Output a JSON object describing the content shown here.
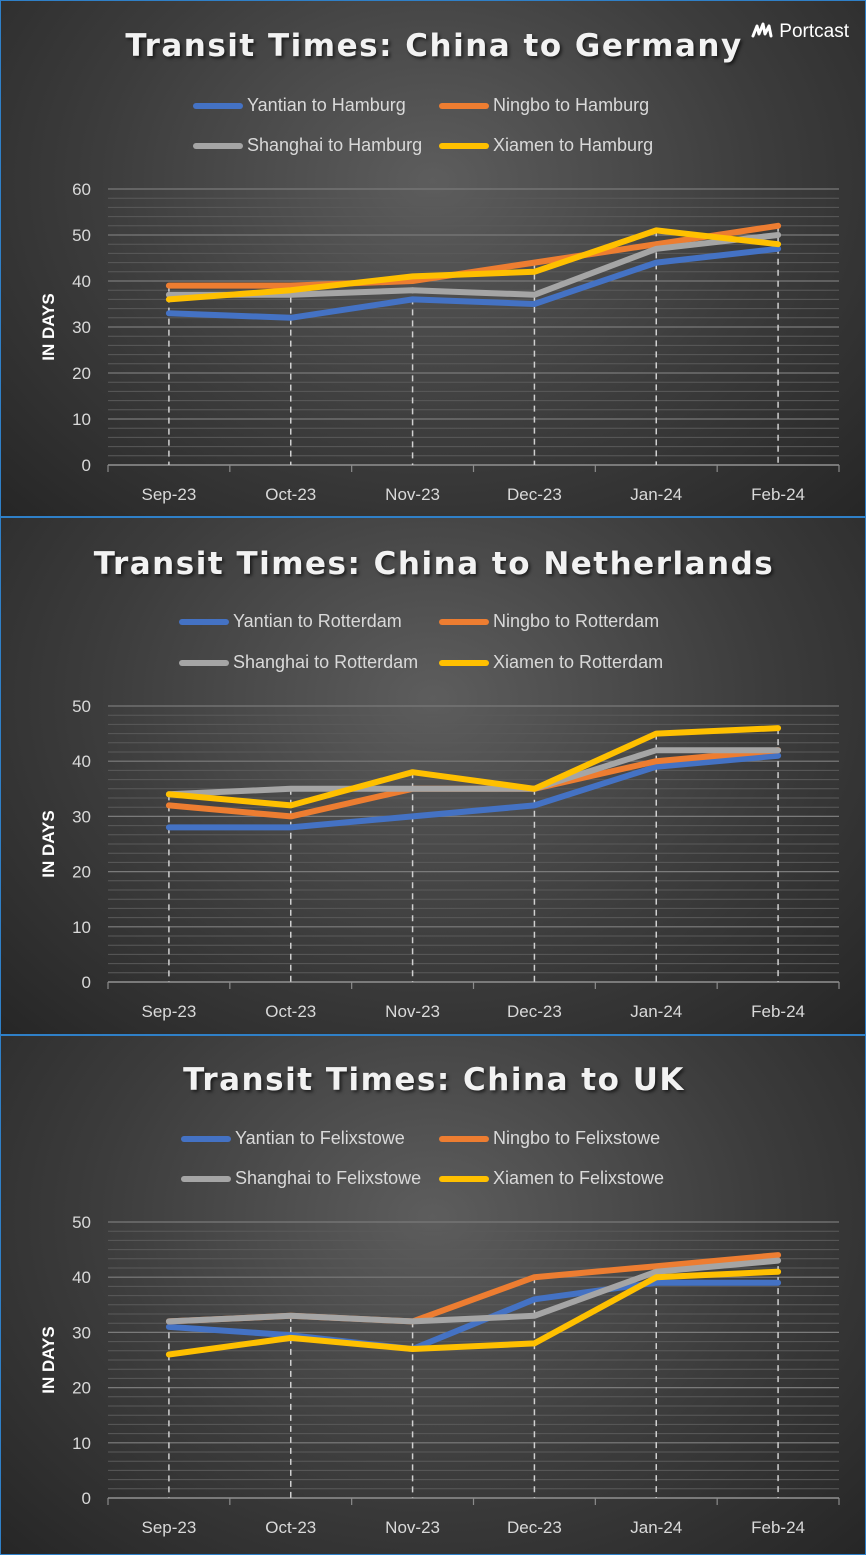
{
  "brand": {
    "name": "Portcast"
  },
  "colors": {
    "Yantian": "#4472c4",
    "Ningbo": "#ed7d31",
    "Shanghai": "#a5a5a5",
    "Xiamen": "#ffc000"
  },
  "chart_data": [
    {
      "type": "line",
      "title": "Transit Times: China to Germany",
      "ylabel": "IN DAYS",
      "xlabel": "",
      "categories": [
        "Sep-23",
        "Oct-23",
        "Nov-23",
        "Dec-23",
        "Jan-24",
        "Feb-24"
      ],
      "ylim": [
        0,
        60
      ],
      "yticks": [
        0,
        10,
        20,
        30,
        40,
        50,
        60
      ],
      "grid": true,
      "legend_position": "top",
      "series": [
        {
          "name": "Yantian to Hamburg",
          "values": [
            33,
            32,
            36,
            35,
            44,
            47
          ]
        },
        {
          "name": "Ningbo to Hamburg",
          "values": [
            39,
            39,
            40,
            44,
            48,
            52
          ]
        },
        {
          "name": "Shanghai to Hamburg",
          "values": [
            37,
            37,
            38,
            37,
            47,
            50
          ]
        },
        {
          "name": "Xiamen to Hamburg",
          "values": [
            36,
            38,
            41,
            42,
            51,
            48
          ]
        }
      ]
    },
    {
      "type": "line",
      "title": "Transit Times: China to Netherlands",
      "ylabel": "IN DAYS",
      "xlabel": "",
      "categories": [
        "Sep-23",
        "Oct-23",
        "Nov-23",
        "Dec-23",
        "Jan-24",
        "Feb-24"
      ],
      "ylim": [
        0,
        50
      ],
      "yticks": [
        0,
        10,
        20,
        30,
        40,
        50
      ],
      "grid": true,
      "legend_position": "top",
      "series": [
        {
          "name": "Yantian to Rotterdam",
          "values": [
            28,
            28,
            30,
            32,
            39,
            41
          ]
        },
        {
          "name": "Ningbo to Rotterdam",
          "values": [
            32,
            30,
            35,
            35,
            40,
            42
          ]
        },
        {
          "name": "Shanghai to Rotterdam",
          "values": [
            34,
            35,
            35,
            35,
            42,
            42
          ]
        },
        {
          "name": "Xiamen to Rotterdam",
          "values": [
            34,
            32,
            38,
            35,
            45,
            46
          ]
        }
      ]
    },
    {
      "type": "line",
      "title": "Transit Times: China to UK",
      "ylabel": "IN DAYS",
      "xlabel": "",
      "categories": [
        "Sep-23",
        "Oct-23",
        "Nov-23",
        "Dec-23",
        "Jan-24",
        "Feb-24"
      ],
      "ylim": [
        0,
        50
      ],
      "yticks": [
        0,
        10,
        20,
        30,
        40,
        50
      ],
      "grid": true,
      "legend_position": "top",
      "series": [
        {
          "name": "Yantian to Felixstowe",
          "values": [
            31,
            29.5,
            27,
            36,
            39,
            39
          ]
        },
        {
          "name": "Ningbo to Felixstowe",
          "values": [
            32,
            33,
            32,
            40,
            42,
            44
          ]
        },
        {
          "name": "Shanghai to Felixstowe",
          "values": [
            32,
            33,
            32,
            33,
            41,
            43
          ]
        },
        {
          "name": "Xiamen to Felixstowe",
          "values": [
            26,
            29,
            27,
            28,
            40,
            41
          ]
        }
      ]
    }
  ]
}
